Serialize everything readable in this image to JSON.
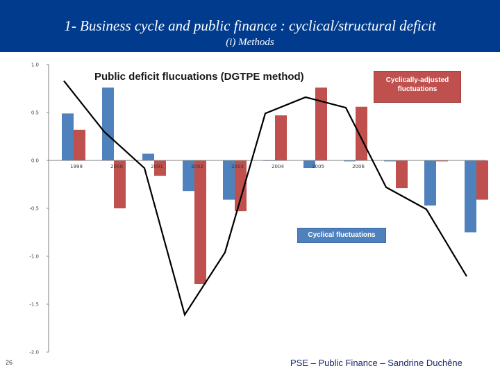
{
  "slide": {
    "title": "1- Business cycle and public finance : cyclical/structural deficit",
    "subtitle": "(i) Methods",
    "slide_number": "26",
    "footer": "PSE – Public Finance – Sandrine Duchêne"
  },
  "chart_data": {
    "type": "bar",
    "title": "Public deficit flucuations  (DGTPE method)",
    "categories": [
      "1999",
      "2000",
      "2001",
      "2002",
      "2003",
      "2004",
      "2005",
      "2006",
      "",
      "",
      ""
    ],
    "series": [
      {
        "name": "Cyclical fluctuations",
        "type": "bar",
        "color": "#4f81bd",
        "values": [
          0.49,
          0.76,
          0.07,
          -0.32,
          -0.41,
          0.0,
          -0.08,
          -0.01,
          -0.01,
          -0.47,
          -0.75
        ]
      },
      {
        "name": "Cyclically-adjusted fluctuations",
        "type": "bar",
        "color": "#c0504d",
        "values": [
          0.32,
          -0.5,
          -0.16,
          -1.29,
          -0.53,
          0.47,
          0.76,
          0.56,
          -0.29,
          -0.01,
          -0.41
        ]
      },
      {
        "name": "",
        "type": "line",
        "color": "#000000",
        "values": [
          0.83,
          0.3,
          -0.08,
          -1.61,
          -0.96,
          0.49,
          0.66,
          0.55,
          -0.28,
          -0.51,
          -1.21
        ]
      }
    ],
    "y_ticks": [
      "1.0",
      "0.5",
      "0.0",
      "-0.5",
      "-1.0",
      "-1.5",
      "-2.0"
    ],
    "ylim": [
      -2.0,
      1.0
    ],
    "xlabel": "",
    "ylabel": "",
    "grid": false,
    "legend": [
      "Cyclically-adjusted fluctuations",
      "Cyclical fluctuations"
    ]
  }
}
